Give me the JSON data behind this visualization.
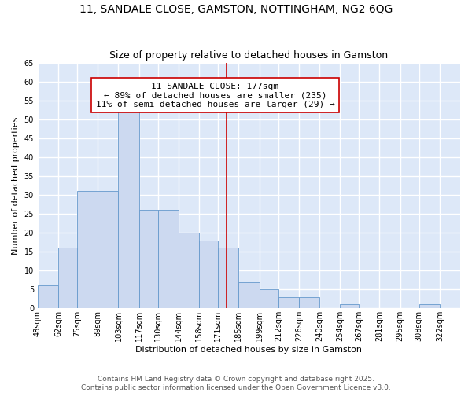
{
  "title": "11, SANDALE CLOSE, GAMSTON, NOTTINGHAM, NG2 6QG",
  "subtitle": "Size of property relative to detached houses in Gamston",
  "xlabel": "Distribution of detached houses by size in Gamston",
  "ylabel": "Number of detached properties",
  "bin_labels": [
    "48sqm",
    "62sqm",
    "75sqm",
    "89sqm",
    "103sqm",
    "117sqm",
    "130sqm",
    "144sqm",
    "158sqm",
    "171sqm",
    "185sqm",
    "199sqm",
    "212sqm",
    "226sqm",
    "240sqm",
    "254sqm",
    "267sqm",
    "281sqm",
    "295sqm",
    "308sqm",
    "322sqm"
  ],
  "bin_edges": [
    48,
    62,
    75,
    89,
    103,
    117,
    130,
    144,
    158,
    171,
    185,
    199,
    212,
    226,
    240,
    254,
    267,
    281,
    295,
    308,
    322,
    336
  ],
  "bar_heights": [
    6,
    16,
    31,
    31,
    52,
    26,
    26,
    20,
    18,
    16,
    7,
    5,
    3,
    3,
    0,
    1,
    0,
    0,
    0,
    1,
    0
  ],
  "bar_color": "#ccd9f0",
  "bar_edge_color": "#6699cc",
  "vline_x": 177,
  "vline_color": "#cc0000",
  "annotation_title": "11 SANDALE CLOSE: 177sqm",
  "annotation_line1": "← 89% of detached houses are smaller (235)",
  "annotation_line2": "11% of semi-detached houses are larger (29) →",
  "annotation_box_facecolor": "#ffffff",
  "annotation_box_edgecolor": "#cc0000",
  "ylim": [
    0,
    65
  ],
  "yticks": [
    0,
    5,
    10,
    15,
    20,
    25,
    30,
    35,
    40,
    45,
    50,
    55,
    60,
    65
  ],
  "footer_line1": "Contains HM Land Registry data © Crown copyright and database right 2025.",
  "footer_line2": "Contains public sector information licensed under the Open Government Licence v3.0.",
  "plot_bg_color": "#dde8f8",
  "fig_bg_color": "#ffffff",
  "grid_color": "#ffffff",
  "title_fontsize": 10,
  "subtitle_fontsize": 9,
  "label_fontsize": 8,
  "tick_fontsize": 7,
  "footer_fontsize": 6.5,
  "annotation_fontsize": 8
}
